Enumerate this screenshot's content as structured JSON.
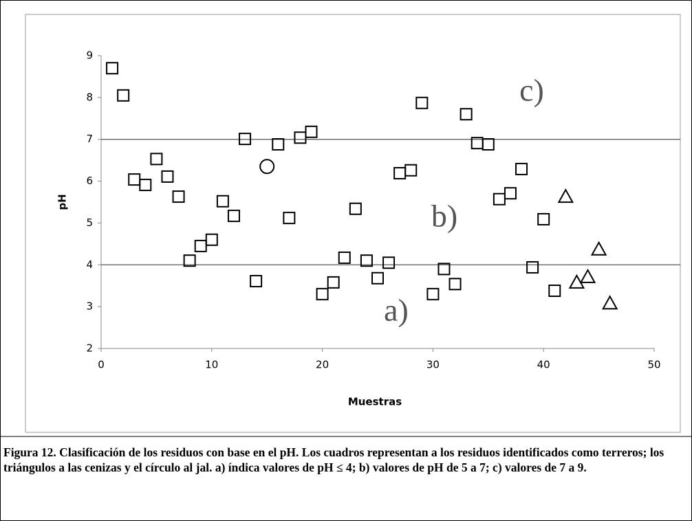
{
  "chart_data": {
    "type": "scatter",
    "xlabel": "Muestras",
    "ylabel": "pH",
    "xlim": [
      0,
      50
    ],
    "xticks": [
      0,
      10,
      20,
      30,
      40,
      50
    ],
    "ylim": [
      2,
      9
    ],
    "yticks": [
      2,
      3,
      4,
      5,
      6,
      7,
      8,
      9
    ],
    "reference_lines": [
      4,
      7
    ],
    "annotations": [
      "a)",
      "b)",
      "c)"
    ],
    "series": [
      {
        "marker": "square",
        "color": "#000000",
        "x": [
          1,
          2,
          3,
          4,
          5,
          6,
          7,
          8,
          9,
          10,
          11,
          12,
          13,
          14,
          16,
          17,
          18,
          19,
          20,
          21,
          22,
          23,
          24,
          25,
          26,
          27,
          28,
          29,
          30,
          31,
          32,
          33,
          34,
          35,
          36,
          37,
          38,
          39,
          40,
          41
        ],
        "values": [
          8.7,
          8.05,
          6.04,
          5.91,
          6.53,
          6.11,
          5.63,
          4.1,
          4.45,
          4.6,
          5.52,
          5.17,
          7.01,
          3.61,
          6.88,
          5.12,
          7.04,
          7.18,
          3.3,
          3.58,
          4.17,
          5.34,
          4.1,
          3.68,
          4.05,
          6.19,
          6.26,
          7.87,
          3.3,
          3.9,
          3.54,
          7.6,
          6.91,
          6.88,
          5.57,
          5.71,
          6.29,
          3.94,
          5.09,
          3.38
        ]
      },
      {
        "marker": "circle",
        "color": "#000000",
        "x": [
          15
        ],
        "values": [
          6.35
        ]
      },
      {
        "marker": "triangle",
        "color": "#000000",
        "x": [
          42,
          43,
          44,
          45,
          46
        ],
        "values": [
          5.63,
          3.58,
          3.71,
          4.37,
          3.08
        ]
      }
    ]
  },
  "caption": "Figura 12. Clasificación de los residuos con base en el pH. Los cuadros representan a los residuos identificados como terreros; los triángulos a las cenizas y el círculo al jal. a) índica valores de pH ≤ 4; b) valores de pH de 5 a 7; c) valores de 7 a 9."
}
